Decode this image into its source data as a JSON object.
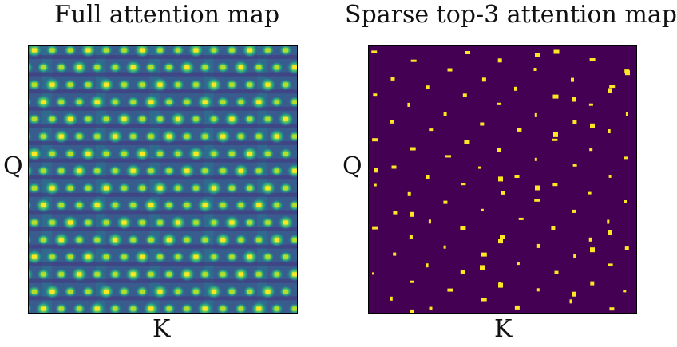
{
  "chart_data": [
    {
      "type": "heatmap",
      "title": "Full attention map",
      "xlabel": "K",
      "ylabel": "Q",
      "colormap": "viridis",
      "pattern": "periodic lattice of high-attention peaks on a blue background",
      "colors": {
        "low": "#440154",
        "mid": "#2c738e",
        "high": "#fde725"
      },
      "grid": false,
      "ticks": false
    },
    {
      "type": "heatmap",
      "title": "Sparse top-3 attention map",
      "xlabel": "K",
      "ylabel": "Q",
      "colormap": "binary-viridis",
      "pattern": "sparse yellow dots (top-3 keys per query) on dark purple",
      "colors": {
        "background": "#440154",
        "selected": "#fde725"
      },
      "grid": false,
      "ticks": false
    }
  ]
}
